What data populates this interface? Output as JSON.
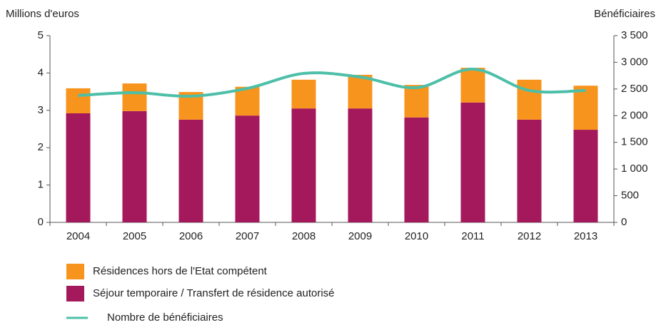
{
  "chart_data": {
    "type": "stacked_bar_line",
    "y_label": "Millions d'euros",
    "y2_label": "Bénéficiaires",
    "categories": [
      "2004",
      "2005",
      "2006",
      "2007",
      "2008",
      "2009",
      "2010",
      "2011",
      "2012",
      "2013"
    ],
    "series": [
      {
        "name": "Séjour temporaire / Transfert de résidence autorisé",
        "color": "#a3195b",
        "type": "bar",
        "values": [
          2.92,
          2.98,
          2.75,
          2.86,
          3.05,
          3.05,
          2.81,
          3.21,
          2.75,
          2.48
        ]
      },
      {
        "name": "Résidences hors de l'Etat compétent",
        "color": "#f7941d",
        "type": "bar",
        "values": [
          0.67,
          0.74,
          0.74,
          0.77,
          0.77,
          0.9,
          0.87,
          0.93,
          1.07,
          1.18
        ]
      },
      {
        "name": "Nombre de bénéficiaires",
        "color": "#4dbfa8",
        "type": "line",
        "axis": "y2",
        "values": [
          2378,
          2431,
          2364,
          2511,
          2792,
          2725,
          2525,
          2872,
          2471,
          2471
        ]
      }
    ],
    "ylim": [
      0,
      5
    ],
    "yticks": [
      0,
      1,
      2,
      3,
      4,
      5
    ],
    "y2lim": [
      0,
      3500
    ],
    "y2ticks": [
      0,
      500,
      {
        "value": 1000,
        "label": "1 000"
      },
      {
        "value": 1500,
        "label": "1 500"
      },
      {
        "value": 2000,
        "label": "2 000"
      },
      {
        "value": 2500,
        "label": "2 500"
      },
      {
        "value": 3000,
        "label": "3 000"
      },
      {
        "value": 3500,
        "label": "3 500"
      }
    ]
  }
}
